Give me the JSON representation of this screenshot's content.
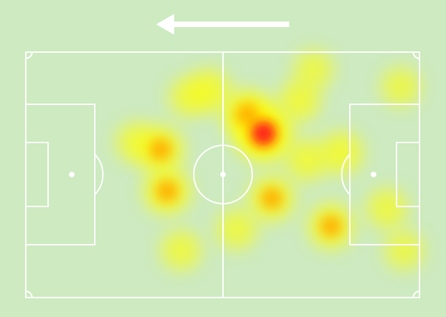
{
  "colors": {
    "background": "#cdeac0",
    "lines": "#ffffff",
    "heat_low": "#ffff00",
    "heat_mid": "#ffaa00",
    "heat_high": "#ff1e1e"
  },
  "attack_direction": "left",
  "pitch_units": {
    "length": 105,
    "width": 68
  },
  "heatmap": [
    {
      "x": 63.4,
      "y": 22.5,
      "intensity": 1.0
    },
    {
      "x": 59.1,
      "y": 17.3,
      "intensity": 0.7
    },
    {
      "x": 35.9,
      "y": 27.0,
      "intensity": 0.6
    },
    {
      "x": 37.7,
      "y": 38.5,
      "intensity": 0.6
    },
    {
      "x": 65.6,
      "y": 40.5,
      "intensity": 0.55
    },
    {
      "x": 81.4,
      "y": 48.2,
      "intensity": 0.55
    },
    {
      "x": 84.2,
      "y": 27.9,
      "intensity": 0.45
    },
    {
      "x": 41.4,
      "y": 54.9,
      "intensity": 0.35
    },
    {
      "x": 48.9,
      "y": 10.6,
      "intensity": 0.45
    },
    {
      "x": 73.0,
      "y": 13.5,
      "intensity": 0.4
    },
    {
      "x": 100.0,
      "y": 9.6,
      "intensity": 0.3
    },
    {
      "x": 96.3,
      "y": 43.3,
      "intensity": 0.35
    },
    {
      "x": 29.4,
      "y": 25.0,
      "intensity": 0.35
    },
    {
      "x": 100.9,
      "y": 54.9,
      "intensity": 0.3
    },
    {
      "x": 76.8,
      "y": 4.8,
      "intensity": 0.3
    },
    {
      "x": 56.3,
      "y": 49.1,
      "intensity": 0.35
    },
    {
      "x": 74.9,
      "y": 29.9,
      "intensity": 0.4
    },
    {
      "x": 43.3,
      "y": 12.5,
      "intensity": 0.3
    }
  ]
}
